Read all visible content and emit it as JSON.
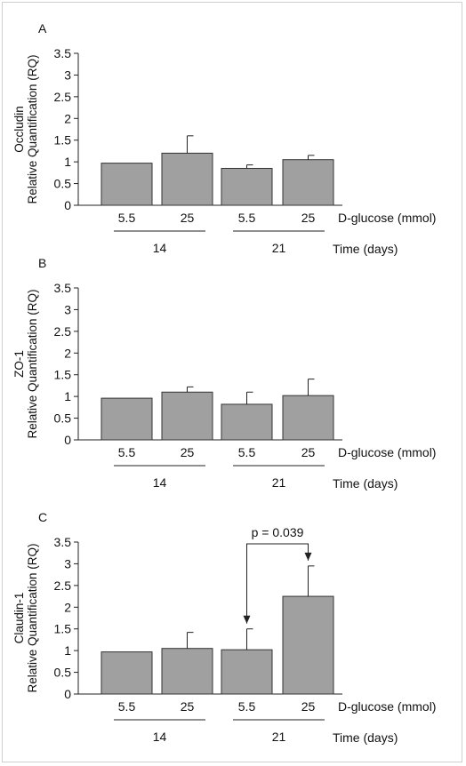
{
  "chart_data": [
    {
      "type": "bar",
      "panel_label": "A",
      "ylabel_line1": "Occludin",
      "ylabel_line2": "Relative Quantification (RQ)",
      "ylim": [
        0,
        3.5
      ],
      "yticks": [
        "0",
        "0.5",
        "1",
        "1.5",
        "2",
        "2.5",
        "3",
        "3.5"
      ],
      "categories": [
        "5.5",
        "25",
        "5.5",
        "25"
      ],
      "values": [
        0.97,
        1.2,
        0.85,
        1.05
      ],
      "errors": [
        0,
        0.4,
        0.08,
        0.1
      ],
      "x_group_label": "D-glucose (mmol)",
      "groups": [
        "14",
        "21"
      ],
      "time_label": "Time (days)"
    },
    {
      "type": "bar",
      "panel_label": "B",
      "ylabel_line1": "ZO-1",
      "ylabel_line2": "Relative Quantification (RQ)",
      "ylim": [
        0,
        3.5
      ],
      "yticks": [
        "0",
        "0.5",
        "1",
        "1.5",
        "2",
        "2.5",
        "3",
        "3.5"
      ],
      "categories": [
        "5.5",
        "25",
        "5.5",
        "25"
      ],
      "values": [
        0.96,
        1.1,
        0.82,
        1.02
      ],
      "errors": [
        0,
        0.12,
        0.28,
        0.38
      ],
      "x_group_label": "D-glucose (mmol)",
      "groups": [
        "14",
        "21"
      ],
      "time_label": "Time (days)"
    },
    {
      "type": "bar",
      "panel_label": "C",
      "ylabel_line1": "Claudin-1",
      "ylabel_line2": "Relative Quantification (RQ)",
      "ylim": [
        0,
        3.5
      ],
      "yticks": [
        "0",
        "0.5",
        "1",
        "1.5",
        "2",
        "2.5",
        "3",
        "3.5"
      ],
      "categories": [
        "5.5",
        "25",
        "5.5",
        "25"
      ],
      "values": [
        0.97,
        1.05,
        1.02,
        2.25
      ],
      "errors": [
        0,
        0.37,
        0.48,
        0.7
      ],
      "x_group_label": "D-glucose (mmol)",
      "groups": [
        "14",
        "21"
      ],
      "time_label": "Time (days)",
      "annotation": "p = 0.039"
    }
  ],
  "colors": {
    "bar": "#a0a0a0",
    "bar_edge": "#333333",
    "axis": "#222222"
  }
}
